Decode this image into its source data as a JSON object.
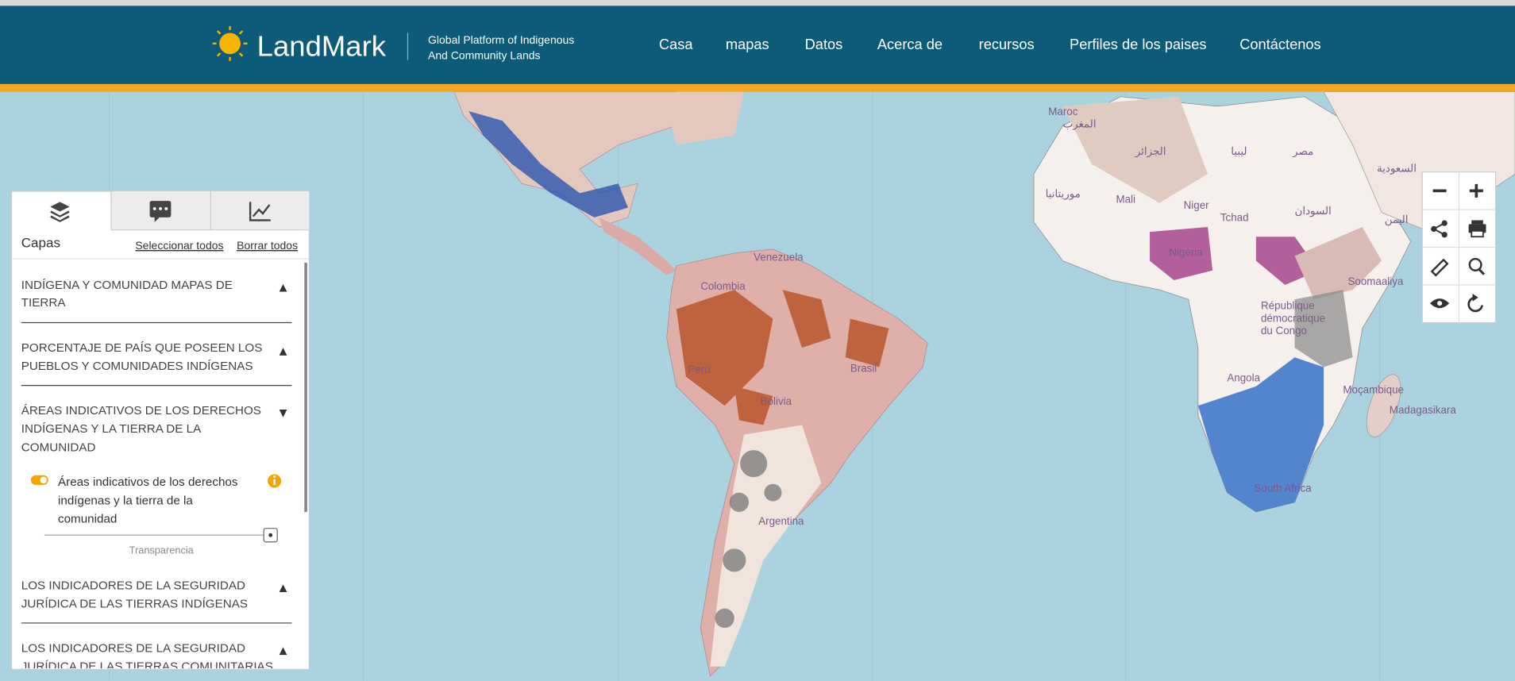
{
  "header": {
    "logo": "LandMark",
    "tagline": [
      "Global Platform of Indigenous",
      "And Community Lands"
    ],
    "nav": [
      "Casa",
      "mapas",
      "Datos",
      "Acerca de",
      "recursos",
      "Perfiles de los paises",
      "Contáctenos"
    ]
  },
  "sidebar": {
    "tab_title": "Capas",
    "select_all": "Seleccionar todos",
    "clear_all": "Borrar todos",
    "sections": [
      {
        "title": [
          "INDÍGENA Y COMUNIDAD MAPAS DE",
          "TIERRA"
        ]
      },
      {
        "title": [
          "PORCENTAJE DE PAÍS QUE POSEEN LOS",
          "PUEBLOS Y COMUNIDADES INDÍGENAS"
        ]
      },
      {
        "title": [
          "ÁREAS INDICATIVOS DE LOS DERECHOS",
          "INDÍGENAS Y LA TIERRA DE LA",
          "COMUNIDAD"
        ]
      },
      {
        "title": [
          "LOS INDICADORES DE LA SEGURIDAD",
          "JURÍDICA DE LAS TIERRAS INDÍGENAS"
        ]
      },
      {
        "title": [
          "LOS INDICADORES DE LA SEGURIDAD",
          "JURÍDICA DE LAS TIERRAS COMUNITARIAS"
        ]
      }
    ],
    "layer": {
      "label": [
        "Áreas indicativos de los derechos",
        "indígenas y la tierra de la",
        "comunidad"
      ],
      "transparency": "Transparencia"
    }
  },
  "map_labels": [
    "Venezuela",
    "Colombia",
    "Perú",
    "Brasil",
    "Bolivia",
    "Argentina",
    "Maroc",
    "المغرب",
    "الجزائر",
    "موريتانيا",
    "Mali",
    "Niger",
    "Nigeria",
    "Tchad",
    "ليبيا",
    "مصر",
    "السودان",
    "السعودية",
    "اليمن",
    "Soomaaliya",
    "République",
    "démocratique",
    "du Congo",
    "Angola",
    "Moçambique",
    "Madagasikara",
    "South Africa"
  ]
}
